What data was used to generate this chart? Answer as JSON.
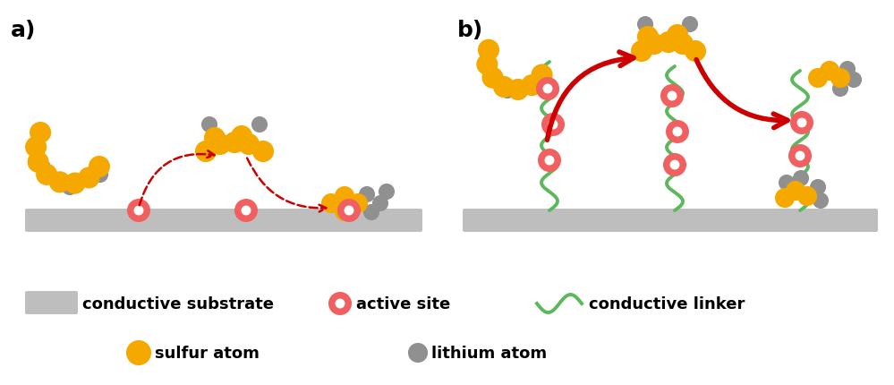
{
  "sulfur_color": "#F5A800",
  "lithium_color": "#909090",
  "active_site_color": "#F06060",
  "active_site_inner": "#ffffff",
  "linker_color": "#5CB85C",
  "substrate_color": "#BEBEBE",
  "arrow_color": "#CC0000",
  "bg_color": "#ffffff",
  "label_a": "a)",
  "label_b": "b)",
  "legend_substrate": "conductive substrate",
  "legend_active": "active site",
  "legend_linker": "conductive linker",
  "legend_sulfur": "sulfur atom",
  "legend_lithium": "lithium atom"
}
